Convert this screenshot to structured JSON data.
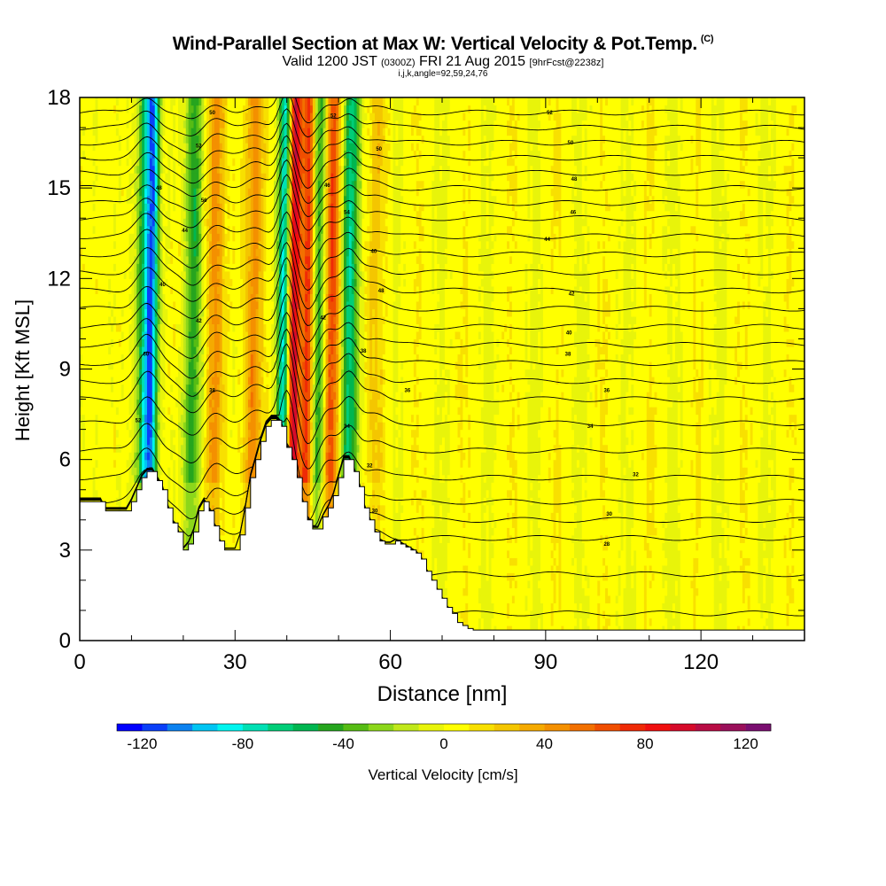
{
  "header": {
    "title": "Wind-Parallel Section at Max W: Vertical Velocity & Pot.Temp.",
    "title_mark": "(C)",
    "valid_prefix": "Valid 1200 JST",
    "valid_utc": "(0300Z)",
    "valid_date": "FRI 21 Aug 2015",
    "forecast": "[9hrFcst@2238z]",
    "indices": "i,j,k,angle=92,59,24,76"
  },
  "chart_data": {
    "type": "heatmap",
    "xlabel": "Distance [nm]",
    "ylabel": "Height [Kft MSL]",
    "xlim": [
      0,
      140
    ],
    "ylim": [
      0,
      18
    ],
    "x_ticks": [
      0,
      30,
      60,
      90,
      120
    ],
    "y_ticks": [
      0,
      3,
      6,
      9,
      12,
      15,
      18
    ],
    "colorbar": {
      "label": "Vertical Velocity [cm/s]",
      "range": [
        -130,
        130
      ],
      "step": 10,
      "tick_values": [
        -120,
        -80,
        -40,
        0,
        40,
        80,
        120
      ],
      "tick_labels": [
        "-120",
        "-80",
        "-40",
        "0",
        "40",
        "80",
        "120"
      ],
      "colors": [
        "#0000ff",
        "#0a3ff8",
        "#0c82f0",
        "#00c5f3",
        "#00f5ef",
        "#00e0b4",
        "#00ce78",
        "#00b650",
        "#26a51e",
        "#56bc14",
        "#8cd71a",
        "#c0e81a",
        "#e8f40a",
        "#ffff00",
        "#f8e000",
        "#f4c600",
        "#f5aa00",
        "#f49000",
        "#f27000",
        "#f04e00",
        "#ef2a06",
        "#f00f0f",
        "#d60a2a",
        "#b80c44",
        "#9a0f5a",
        "#7a0e70"
      ]
    },
    "terrain_profile": {
      "x": [
        0,
        1,
        2,
        3,
        4,
        5,
        6,
        7,
        8,
        9,
        10,
        11,
        12,
        13,
        14,
        15,
        16,
        17,
        18,
        19,
        20,
        21,
        22,
        23,
        24,
        25,
        26,
        27,
        28,
        29,
        30,
        31,
        32,
        33,
        34,
        35,
        36,
        37,
        38,
        39,
        40,
        41,
        42,
        43,
        44,
        45,
        46,
        47,
        48,
        49,
        50,
        51,
        52,
        53,
        54,
        55,
        56,
        57,
        58,
        59,
        60,
        61,
        62,
        63,
        64,
        65,
        66,
        67,
        68,
        69,
        70,
        71,
        72,
        73,
        74,
        75,
        76,
        77,
        78,
        79,
        80,
        140
      ],
      "height": [
        4.6,
        4.6,
        4.6,
        4.6,
        4.6,
        4.3,
        4.3,
        4.3,
        4.3,
        4.3,
        4.6,
        5.0,
        5.4,
        5.6,
        5.6,
        5.3,
        5.0,
        4.4,
        3.9,
        3.6,
        3.0,
        3.2,
        3.6,
        4.3,
        4.6,
        4.3,
        3.8,
        3.3,
        3.0,
        3.0,
        3.0,
        3.5,
        4.4,
        5.4,
        6.0,
        6.6,
        7.1,
        7.3,
        7.3,
        7.1,
        6.4,
        6.0,
        5.4,
        4.6,
        4.0,
        3.7,
        3.7,
        4.1,
        4.4,
        4.8,
        5.4,
        6.0,
        6.0,
        5.6,
        5.1,
        4.4,
        4.0,
        3.6,
        3.3,
        3.2,
        3.2,
        3.3,
        3.2,
        3.1,
        3.0,
        2.9,
        2.7,
        2.3,
        2.0,
        1.7,
        1.4,
        1.1,
        0.9,
        0.6,
        0.5,
        0.4,
        0.35,
        0.35,
        0.35,
        0.35,
        0.35,
        0.35
      ]
    },
    "w_features": [
      {
        "x": 12.5,
        "vmin_cm_s": -60,
        "note": "updraft/downdraft column"
      },
      {
        "x": 13.8,
        "vmin_cm_s": -80
      },
      {
        "x": 21.8,
        "vmin_cm_s": -50
      },
      {
        "x": 26.0,
        "vmax_cm_s": 40
      },
      {
        "x": 33.5,
        "vmax_cm_s": 40
      },
      {
        "x": 39.3,
        "vmin_cm_s": -90
      },
      {
        "x": 41.2,
        "vmax_cm_s": 100
      },
      {
        "x": 44.0,
        "vmax_cm_s": 80
      },
      {
        "x": 46.0,
        "vmin_cm_s": -60
      },
      {
        "x": 48.5,
        "vmax_cm_s": 70
      },
      {
        "x": 52.0,
        "vmin_cm_s": -70
      },
      {
        "x": 57.0,
        "vmax_cm_s": 20
      }
    ],
    "theta_levels_K": [
      306,
      308,
      310,
      312,
      314,
      316,
      318,
      320,
      322,
      324,
      326,
      328,
      330,
      332,
      334,
      336,
      338,
      340,
      342,
      344,
      346,
      348,
      350,
      352,
      354,
      356
    ],
    "theta_base_heights_kft": [
      0.9,
      2.2,
      3.4,
      4.0,
      4.6,
      5.4,
      6.3,
      7.2,
      8.0,
      8.6,
      9.2,
      9.8,
      10.4,
      11.0,
      11.6,
      12.2,
      12.8,
      13.4,
      14.0,
      14.5,
      15.0,
      15.5,
      16.0,
      16.5,
      17.0,
      17.5
    ],
    "contour_labels": [
      {
        "x": 11.3,
        "y": 7.3,
        "text": "52"
      },
      {
        "x": 12.8,
        "y": 9.5,
        "text": "60"
      },
      {
        "x": 16.0,
        "y": 11.8,
        "text": "40"
      },
      {
        "x": 15.3,
        "y": 15.0,
        "text": "48"
      },
      {
        "x": 20.3,
        "y": 13.6,
        "text": "44"
      },
      {
        "x": 23.0,
        "y": 10.6,
        "text": "42"
      },
      {
        "x": 23.0,
        "y": 16.4,
        "text": "52"
      },
      {
        "x": 24.0,
        "y": 14.6,
        "text": "56"
      },
      {
        "x": 25.6,
        "y": 8.3,
        "text": "38"
      },
      {
        "x": 25.6,
        "y": 17.5,
        "text": "50"
      },
      {
        "x": 47.0,
        "y": 10.7,
        "text": "42"
      },
      {
        "x": 47.8,
        "y": 15.1,
        "text": "46"
      },
      {
        "x": 49.0,
        "y": 17.4,
        "text": "52"
      },
      {
        "x": 51.6,
        "y": 7.1,
        "text": "34"
      },
      {
        "x": 51.6,
        "y": 14.2,
        "text": "54"
      },
      {
        "x": 54.8,
        "y": 9.6,
        "text": "38"
      },
      {
        "x": 56.8,
        "y": 12.9,
        "text": "40"
      },
      {
        "x": 56.0,
        "y": 5.8,
        "text": "32"
      },
      {
        "x": 57.0,
        "y": 4.3,
        "text": "30"
      },
      {
        "x": 57.8,
        "y": 16.3,
        "text": "50"
      },
      {
        "x": 58.2,
        "y": 11.6,
        "text": "48"
      },
      {
        "x": 63.3,
        "y": 8.3,
        "text": "36"
      },
      {
        "x": 90.8,
        "y": 17.5,
        "text": "52"
      },
      {
        "x": 90.3,
        "y": 13.3,
        "text": "44"
      },
      {
        "x": 94.8,
        "y": 16.5,
        "text": "50"
      },
      {
        "x": 95.5,
        "y": 15.3,
        "text": "48"
      },
      {
        "x": 95.3,
        "y": 14.2,
        "text": "46"
      },
      {
        "x": 95.0,
        "y": 11.5,
        "text": "42"
      },
      {
        "x": 94.5,
        "y": 10.2,
        "text": "40"
      },
      {
        "x": 94.3,
        "y": 9.5,
        "text": "38"
      },
      {
        "x": 101.8,
        "y": 8.3,
        "text": "36"
      },
      {
        "x": 98.6,
        "y": 7.1,
        "text": "34"
      },
      {
        "x": 107.4,
        "y": 5.5,
        "text": "32"
      },
      {
        "x": 102.3,
        "y": 4.2,
        "text": "30"
      },
      {
        "x": 101.8,
        "y": 3.2,
        "text": "28"
      }
    ]
  }
}
